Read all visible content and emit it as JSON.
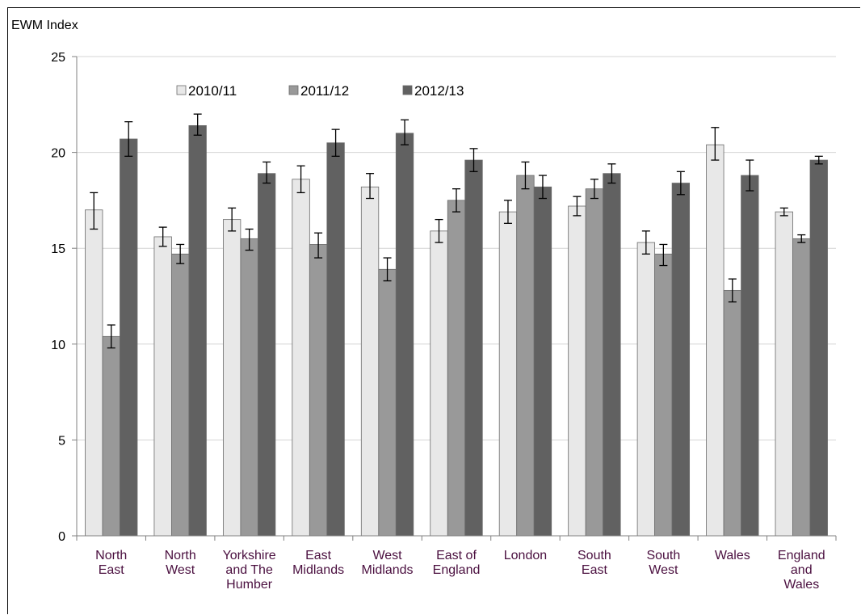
{
  "chart_data": {
    "type": "bar",
    "ylabel": "EWM Index",
    "ylim": [
      0,
      25
    ],
    "yticks": [
      0,
      5,
      10,
      15,
      20,
      25
    ],
    "grid": true,
    "legend_position": "top-left",
    "categories": [
      [
        "North",
        "East"
      ],
      [
        "North",
        "West"
      ],
      [
        "Yorkshire",
        "and The",
        "Humber"
      ],
      [
        "East",
        "Midlands"
      ],
      [
        "West",
        "Midlands"
      ],
      [
        "East of",
        "England"
      ],
      [
        "London"
      ],
      [
        "South",
        "East"
      ],
      [
        "South",
        "West"
      ],
      [
        "Wales"
      ],
      [
        "England",
        "and",
        "Wales"
      ]
    ],
    "series": [
      {
        "name": "2010/11",
        "color": "#e8e8e8",
        "values": [
          17.0,
          15.6,
          16.5,
          18.6,
          18.2,
          15.9,
          16.9,
          17.2,
          15.3,
          20.4,
          16.9
        ],
        "error_low": [
          16.0,
          15.1,
          15.9,
          17.9,
          17.6,
          15.3,
          16.3,
          16.7,
          14.7,
          19.6,
          16.7
        ],
        "error_high": [
          17.9,
          16.1,
          17.1,
          19.3,
          18.9,
          16.5,
          17.5,
          17.7,
          15.9,
          21.3,
          17.1
        ]
      },
      {
        "name": "2011/12",
        "color": "#999999",
        "values": [
          10.4,
          14.7,
          15.5,
          15.2,
          13.9,
          17.5,
          18.8,
          18.1,
          14.7,
          12.8,
          15.5
        ],
        "error_low": [
          9.8,
          14.2,
          14.9,
          14.5,
          13.3,
          16.9,
          18.1,
          17.6,
          14.1,
          12.2,
          15.3
        ],
        "error_high": [
          11.0,
          15.2,
          16.0,
          15.8,
          14.5,
          18.1,
          19.5,
          18.6,
          15.2,
          13.4,
          15.7
        ]
      },
      {
        "name": "2012/13",
        "color": "#616161",
        "values": [
          20.7,
          21.4,
          18.9,
          20.5,
          21.0,
          19.6,
          18.2,
          18.9,
          18.4,
          18.8,
          19.6
        ],
        "error_low": [
          19.8,
          20.9,
          18.4,
          19.8,
          20.4,
          19.0,
          17.6,
          18.4,
          17.8,
          18.0,
          19.4
        ],
        "error_high": [
          21.6,
          22.0,
          19.5,
          21.2,
          21.7,
          20.2,
          18.8,
          19.4,
          19.0,
          19.6,
          19.8
        ]
      }
    ]
  }
}
